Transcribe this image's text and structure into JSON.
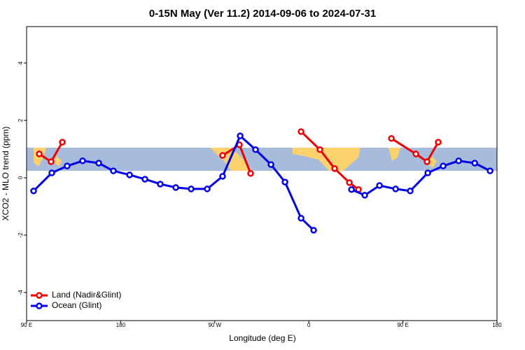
{
  "chart_data": {
    "type": "line",
    "title": "0-15N May (Ver 11.2)   2014-09-06 to 2024-07-31",
    "x_label": "Longitude (deg E)",
    "y_label": "XCO2 - MLO trend (ppm)",
    "xlim": [
      90,
      540
    ],
    "ylim": [
      -4.98,
      5.27
    ],
    "xticks": [
      {
        "value": 90,
        "label": "90 E"
      },
      180,
      {
        "value": 270,
        "label": "90 W"
      },
      {
        "value": 360,
        "label": "0"
      },
      {
        "value": 450,
        "label": "90 E"
      },
      180
    ],
    "yticks": [
      -4,
      -2,
      0,
      2,
      4
    ],
    "legend": "bottom-left",
    "series": [
      {
        "name": "Land (Nadir&Glint)",
        "color": "#ee0000",
        "x": [
          102.1,
          113.4,
          124.2,
          200,
          277.5,
          293.6,
          304.3,
          330,
          352.6,
          370.6,
          384.7,
          398.8,
          407.5,
          420,
          439,
          462.4,
          473.1,
          483.8
        ],
        "values": [
          0.83,
          0.56,
          1.24,
          null,
          0.78,
          1.15,
          0.15,
          null,
          1.61,
          0.98,
          0.32,
          -0.17,
          -0.41,
          null,
          1.37,
          0.83,
          0.56,
          1.24
        ]
      },
      {
        "name": "Ocean (Glint)",
        "color": "#0000ee",
        "x": [
          96.7,
          114.1,
          128.8,
          143.6,
          159,
          173,
          188.5,
          203.2,
          217.9,
          232.7,
          247.4,
          262.8,
          277.5,
          294.3,
          309,
          323.8,
          337.2,
          352.6,
          364.6,
          385,
          400.8,
          413.5,
          427.6,
          443,
          457,
          473.8,
          488.5,
          503.3,
          518.7,
          533.4
        ],
        "values": [
          -0.46,
          0.17,
          0.41,
          0.59,
          0.51,
          0.24,
          0.1,
          -0.05,
          -0.22,
          -0.34,
          -0.39,
          -0.39,
          0.05,
          1.46,
          0.98,
          0.46,
          -0.15,
          -1.41,
          -1.83,
          null,
          -0.41,
          -0.61,
          -0.27,
          -0.39,
          -0.46,
          0.17,
          0.41,
          0.59,
          0.51,
          0.24
        ]
      }
    ]
  }
}
